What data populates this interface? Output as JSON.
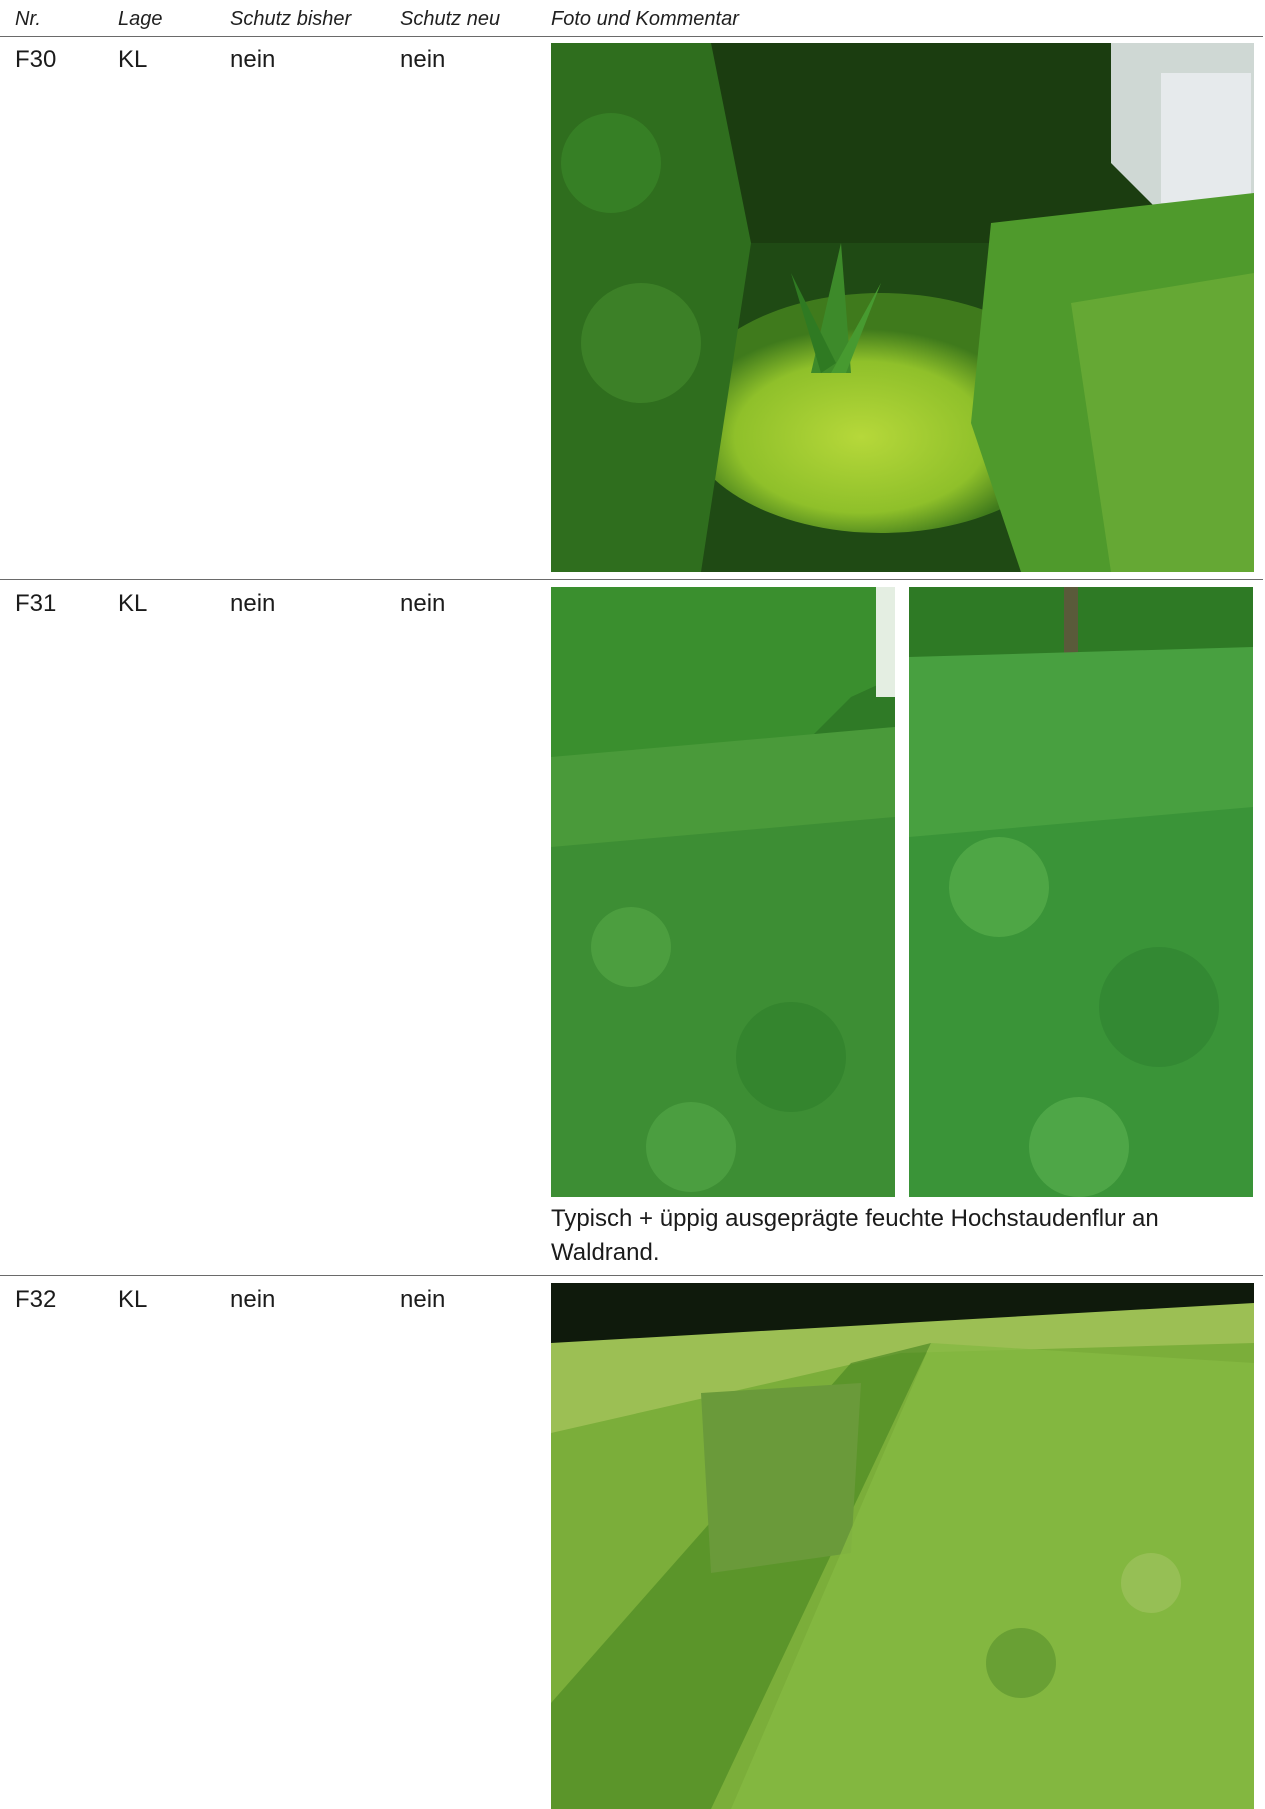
{
  "table": {
    "headers": [
      "Nr.",
      "Lage",
      "Schutz bisher",
      "Schutz neu",
      "Foto und Kommentar"
    ],
    "rows": [
      {
        "nr": "F30",
        "lage": "KL",
        "schutz_bisher": "nein",
        "schutz_neu": "nein",
        "comment": ""
      },
      {
        "nr": "F31",
        "lage": "KL",
        "schutz_bisher": "nein",
        "schutz_neu": "nein",
        "comment": "Typisch + üppig ausgeprägte feuchte Hochstaudenflur an Waldrand."
      },
      {
        "nr": "F32",
        "lage": "KL",
        "schutz_bisher": "nein",
        "schutz_neu": "nein",
        "comment": ""
      }
    ]
  }
}
